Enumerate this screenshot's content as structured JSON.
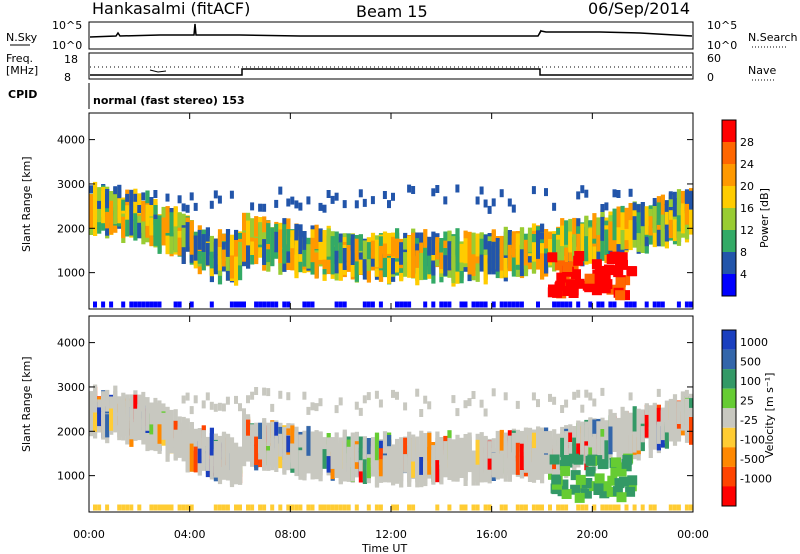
{
  "header": {
    "station": "Hankasalmi (fitACF)",
    "beam": "Beam 15",
    "date": "06/Sep/2014"
  },
  "status_panel": {
    "nsky_label": "N.Sky",
    "nsearch_label": "N.Search",
    "nsky_ticks": [
      "10^5",
      "10^0"
    ],
    "nsearch_ticks": [
      "10^5",
      "10^0"
    ],
    "freq_label_line1": "Freq.",
    "freq_label_line2": "[MHz]",
    "freq_ticks": [
      "18",
      "8"
    ],
    "nave_label": "Nave",
    "nave_ticks": [
      "60",
      "0"
    ],
    "cpid_label": "CPID",
    "cpid_text": "normal (fast stereo) 153"
  },
  "chart_data": [
    {
      "type": "heatmap",
      "ylabel": "Slant Range [km]",
      "xlabel": "Time UT",
      "x_ticks": [
        "00:00",
        "04:00",
        "08:00",
        "12:00",
        "16:00",
        "20:00",
        "00:00"
      ],
      "xlim": [
        0,
        24
      ],
      "y_ticks": [
        "4000",
        "3000",
        "2000",
        "1000"
      ],
      "ylim": [
        180,
        4600
      ],
      "colorbar_label": "Power [dB]",
      "colorbar_ticks": [
        "28",
        "24",
        "20",
        "16",
        "12",
        "8",
        "4"
      ],
      "colorbar_colors": [
        "#ff0000",
        "#ff6600",
        "#ff9900",
        "#ffcc00",
        "#99cc33",
        "#33aa66",
        "#2255aa",
        "#0000ff"
      ]
    },
    {
      "type": "heatmap",
      "ylabel": "Slant Range [km]",
      "xlabel": "Time UT",
      "x_ticks": [
        "00:00",
        "04:00",
        "08:00",
        "12:00",
        "16:00",
        "20:00",
        "00:00"
      ],
      "xlim": [
        0,
        24
      ],
      "y_ticks": [
        "4000",
        "3000",
        "2000",
        "1000"
      ],
      "ylim": [
        180,
        4600
      ],
      "colorbar_label": "Velocity [m s⁻¹]",
      "colorbar_ticks": [
        "1000",
        "500",
        "100",
        "25",
        "-25",
        "-100",
        "-500",
        "-1000"
      ],
      "colorbar_colors": [
        "#1a3fbf",
        "#3366aa",
        "#339966",
        "#66cc33",
        "#c8c8c0",
        "#ffcc33",
        "#ff8800",
        "#ff4400",
        "#ff0000"
      ]
    }
  ]
}
